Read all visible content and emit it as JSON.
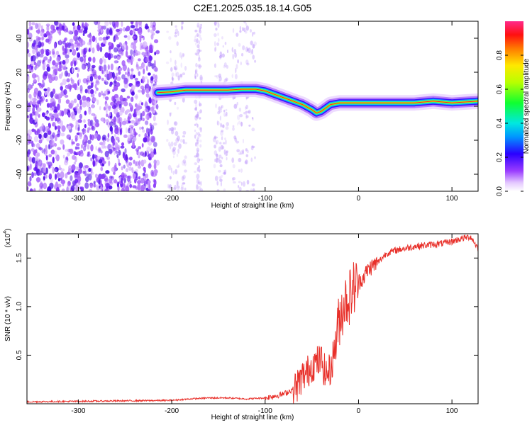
{
  "figure": {
    "title": "C2E1.2025.035.18.14.G05"
  },
  "chart_data": [
    {
      "type": "heatmap",
      "xlabel": "Height of straight line (km)",
      "ylabel": "Frequency (Hz)",
      "xlim": [
        -355,
        128
      ],
      "ylim": [
        -50,
        50
      ],
      "x_ticks": [
        "-300",
        "-200",
        "-100",
        "0",
        "100"
      ],
      "x_tick_values": [
        -300,
        -200,
        -100,
        0,
        100
      ],
      "y_ticks": [
        "-40",
        "-20",
        "0",
        "20",
        "40"
      ],
      "y_tick_values": [
        -40,
        -20,
        0,
        20,
        40
      ],
      "colorbar": {
        "label": "Normalized spectral amplitude",
        "range": [
          0,
          1
        ],
        "ticks": [
          "0.0",
          "0.2",
          "0.4",
          "0.6",
          "0.8"
        ],
        "tick_values": [
          0.0,
          0.2,
          0.4,
          0.6,
          0.8
        ]
      },
      "noise_region": {
        "x": [
          -355,
          -215
        ],
        "y": [
          -50,
          50
        ]
      },
      "ridge": {
        "x": [
          -215,
          -200,
          -185,
          -170,
          -155,
          -140,
          -125,
          -110,
          -100,
          -90,
          -80,
          -70,
          -60,
          -50,
          -45,
          -40,
          -30,
          -20,
          -10,
          0,
          10,
          20,
          40,
          60,
          80,
          100,
          128
        ],
        "freq": [
          8,
          8.5,
          9.5,
          9.5,
          9.5,
          9.5,
          10,
          10,
          9,
          7,
          5,
          3,
          1,
          -2,
          -4,
          -3,
          1,
          2,
          2,
          2,
          2,
          2,
          2,
          2,
          3,
          2,
          3
        ]
      }
    },
    {
      "type": "line",
      "xlabel": "Height of straight line (km)",
      "ylabel": "SNR (10 * v/v)",
      "y_scale_note": "(x10",
      "y_scale_exp": "4",
      "xlim": [
        -355,
        128
      ],
      "ylim": [
        0,
        1.75
      ],
      "x_ticks": [
        "-300",
        "-200",
        "-100",
        "0",
        "100"
      ],
      "x_tick_values": [
        -300,
        -200,
        -100,
        0,
        100
      ],
      "y_ticks": [
        "0.5",
        "1.0",
        "1.5"
      ],
      "y_tick_values": [
        0.5,
        1.0,
        1.5
      ],
      "color": "#e8302a",
      "series": [
        {
          "x": [
            -355,
            -300,
            -250,
            -200,
            -180,
            -160,
            -140,
            -120,
            -100,
            -90,
            -80,
            -70,
            -65,
            -60,
            -55,
            -50,
            -45,
            -40,
            -35,
            -30,
            -25,
            -20,
            -15,
            -10,
            -5,
            0,
            5,
            10,
            15,
            20,
            25,
            30,
            40,
            50,
            60,
            70,
            80,
            90,
            100,
            110,
            120,
            128
          ],
          "y": [
            0.02,
            0.025,
            0.03,
            0.035,
            0.05,
            0.06,
            0.06,
            0.05,
            0.06,
            0.08,
            0.1,
            0.15,
            0.2,
            0.28,
            0.32,
            0.4,
            0.42,
            0.45,
            0.3,
            0.35,
            0.6,
            0.9,
            1.05,
            1.1,
            1.2,
            1.25,
            1.3,
            1.38,
            1.42,
            1.45,
            1.5,
            1.55,
            1.58,
            1.6,
            1.62,
            1.63,
            1.64,
            1.65,
            1.67,
            1.7,
            1.72,
            1.6
          ]
        }
      ]
    }
  ]
}
